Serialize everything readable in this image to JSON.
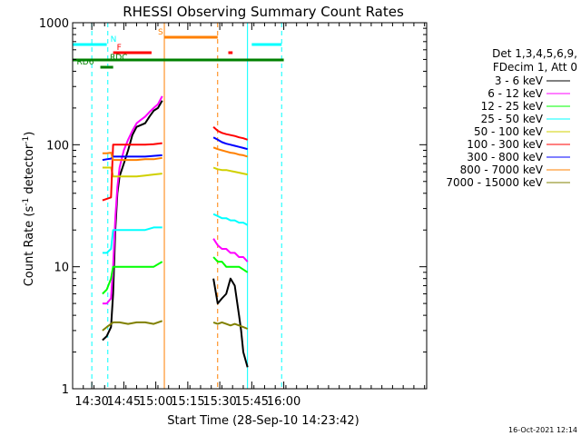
{
  "chart_data": {
    "type": "line",
    "title": "RHESSI Observing Summary Count Rates",
    "xlabel": "Start Time (28-Sep-10 14:23:42)",
    "ylabel_main": "Count Rate (s",
    "ylabel_sup1": "-1",
    "ylabel_mid": " detector",
    "ylabel_sup2": "-1",
    "ylabel_end": ")",
    "yscale": "log",
    "ylim": [
      1,
      1000
    ],
    "xlim_min": [
      14.0,
      180.0
    ],
    "x_ticks": [
      {
        "min": 23,
        "label": "14:30"
      },
      {
        "min": 38,
        "label": "14:45"
      },
      {
        "min": 53,
        "label": "15:00"
      },
      {
        "min": 68,
        "label": "15:15"
      },
      {
        "min": 83,
        "label": "15:30"
      },
      {
        "min": 98,
        "label": "15:45"
      },
      {
        "min": 113,
        "label": "16:00"
      }
    ],
    "y_ticks": [
      {
        "value": 1,
        "label": "1"
      },
      {
        "value": 10,
        "label": "10"
      },
      {
        "value": 100,
        "label": "100"
      },
      {
        "value": 1000,
        "label": "1000"
      }
    ],
    "legend": {
      "header1": "Det 1,3,4,5,6,9,",
      "header2": "FDecim 1, Att 0",
      "position": "right"
    },
    "series": [
      {
        "name": "3 - 6 keV",
        "color": "#000000",
        "seg1": [
          [
            28,
            2.5
          ],
          [
            30,
            2.7
          ],
          [
            32,
            3.2
          ],
          [
            33,
            6
          ],
          [
            34,
            20
          ],
          [
            35,
            40
          ],
          [
            36,
            55
          ],
          [
            38,
            70
          ],
          [
            40,
            90
          ],
          [
            42,
            120
          ],
          [
            44,
            140
          ],
          [
            46,
            145
          ],
          [
            48,
            150
          ],
          [
            50,
            170
          ],
          [
            52,
            190
          ],
          [
            54,
            200
          ],
          [
            56,
            230
          ]
        ],
        "seg2": [
          [
            80,
            8
          ],
          [
            82,
            5
          ],
          [
            84,
            5.5
          ],
          [
            86,
            6
          ],
          [
            88,
            8
          ],
          [
            90,
            7
          ],
          [
            92,
            4
          ],
          [
            93,
            3
          ],
          [
            94,
            2
          ],
          [
            96,
            1.5
          ]
        ]
      },
      {
        "name": "6 - 12 keV",
        "color": "#ff00ff",
        "seg1": [
          [
            28,
            5
          ],
          [
            30,
            5
          ],
          [
            32,
            5.5
          ],
          [
            33,
            10
          ],
          [
            34,
            25
          ],
          [
            35,
            45
          ],
          [
            36,
            65
          ],
          [
            38,
            90
          ],
          [
            40,
            110
          ],
          [
            42,
            130
          ],
          [
            44,
            150
          ],
          [
            46,
            160
          ],
          [
            48,
            170
          ],
          [
            50,
            185
          ],
          [
            52,
            200
          ],
          [
            54,
            215
          ],
          [
            56,
            250
          ]
        ],
        "seg2": [
          [
            80,
            17
          ],
          [
            82,
            15
          ],
          [
            84,
            14
          ],
          [
            86,
            14
          ],
          [
            88,
            13
          ],
          [
            90,
            13
          ],
          [
            92,
            12
          ],
          [
            94,
            12
          ],
          [
            96,
            11
          ]
        ]
      },
      {
        "name": "12 - 25 keV",
        "color": "#00ff00",
        "seg1": [
          [
            28,
            6
          ],
          [
            30,
            6.5
          ],
          [
            32,
            8
          ],
          [
            33,
            10
          ],
          [
            36,
            10
          ],
          [
            40,
            10
          ],
          [
            44,
            10
          ],
          [
            48,
            10
          ],
          [
            52,
            10
          ],
          [
            56,
            11
          ]
        ],
        "seg2": [
          [
            80,
            12
          ],
          [
            82,
            11
          ],
          [
            84,
            11
          ],
          [
            86,
            10
          ],
          [
            88,
            10
          ],
          [
            90,
            10
          ],
          [
            92,
            10
          ],
          [
            94,
            9.5
          ],
          [
            96,
            9
          ]
        ]
      },
      {
        "name": "25 - 50 keV",
        "color": "#00ffff",
        "seg1": [
          [
            28,
            13
          ],
          [
            30,
            13
          ],
          [
            32,
            14
          ],
          [
            33,
            20
          ],
          [
            36,
            20
          ],
          [
            40,
            20
          ],
          [
            44,
            20
          ],
          [
            48,
            20
          ],
          [
            52,
            21
          ],
          [
            56,
            21
          ]
        ],
        "seg2": [
          [
            80,
            27
          ],
          [
            82,
            26
          ],
          [
            84,
            25
          ],
          [
            86,
            25
          ],
          [
            88,
            24
          ],
          [
            90,
            24
          ],
          [
            92,
            23
          ],
          [
            94,
            23
          ],
          [
            96,
            22
          ]
        ]
      },
      {
        "name": "50 - 100 keV",
        "color": "#d0d000",
        "seg1": [
          [
            28,
            65
          ],
          [
            30,
            65
          ],
          [
            32,
            65
          ],
          [
            33,
            55
          ],
          [
            36,
            55
          ],
          [
            40,
            55
          ],
          [
            44,
            55
          ],
          [
            48,
            56
          ],
          [
            52,
            57
          ],
          [
            56,
            58
          ]
        ],
        "seg2": [
          [
            80,
            65
          ],
          [
            82,
            63
          ],
          [
            84,
            62
          ],
          [
            86,
            62
          ],
          [
            88,
            61
          ],
          [
            90,
            60
          ],
          [
            92,
            59
          ],
          [
            94,
            58
          ],
          [
            96,
            57
          ]
        ]
      },
      {
        "name": "100 - 300 keV",
        "color": "#ff0000",
        "seg1": [
          [
            28,
            35
          ],
          [
            30,
            36
          ],
          [
            32,
            37
          ],
          [
            33,
            100
          ],
          [
            36,
            100
          ],
          [
            40,
            100
          ],
          [
            44,
            100
          ],
          [
            48,
            100
          ],
          [
            52,
            101
          ],
          [
            56,
            103
          ]
        ],
        "seg2": [
          [
            80,
            140
          ],
          [
            82,
            130
          ],
          [
            84,
            125
          ],
          [
            86,
            122
          ],
          [
            88,
            120
          ],
          [
            90,
            118
          ],
          [
            92,
            115
          ],
          [
            94,
            113
          ],
          [
            96,
            110
          ]
        ]
      },
      {
        "name": "300 - 800 keV",
        "color": "#0000ff",
        "seg1": [
          [
            28,
            75
          ],
          [
            30,
            76
          ],
          [
            32,
            77
          ],
          [
            33,
            80
          ],
          [
            36,
            80
          ],
          [
            40,
            80
          ],
          [
            44,
            80
          ],
          [
            48,
            80
          ],
          [
            52,
            81
          ],
          [
            56,
            82
          ]
        ],
        "seg2": [
          [
            80,
            115
          ],
          [
            82,
            110
          ],
          [
            84,
            105
          ],
          [
            86,
            102
          ],
          [
            88,
            100
          ],
          [
            90,
            98
          ],
          [
            92,
            96
          ],
          [
            94,
            94
          ],
          [
            96,
            92
          ]
        ]
      },
      {
        "name": "800 - 7000 keV",
        "color": "#ff8000",
        "seg1": [
          [
            28,
            85
          ],
          [
            30,
            85
          ],
          [
            32,
            86
          ],
          [
            33,
            75
          ],
          [
            36,
            75
          ],
          [
            40,
            75
          ],
          [
            44,
            75
          ],
          [
            48,
            76
          ],
          [
            52,
            76
          ],
          [
            56,
            78
          ]
        ],
        "seg2": [
          [
            80,
            95
          ],
          [
            82,
            92
          ],
          [
            84,
            90
          ],
          [
            86,
            88
          ],
          [
            88,
            86
          ],
          [
            90,
            85
          ],
          [
            92,
            83
          ],
          [
            94,
            82
          ],
          [
            96,
            80
          ]
        ]
      },
      {
        "name": "7000 - 15000 keV",
        "color": "#808000",
        "seg1": [
          [
            28,
            3
          ],
          [
            30,
            3.2
          ],
          [
            32,
            3.4
          ],
          [
            33,
            3.5
          ],
          [
            36,
            3.5
          ],
          [
            40,
            3.4
          ],
          [
            44,
            3.5
          ],
          [
            48,
            3.5
          ],
          [
            52,
            3.4
          ],
          [
            56,
            3.6
          ]
        ],
        "seg2": [
          [
            80,
            3.5
          ],
          [
            82,
            3.4
          ],
          [
            84,
            3.5
          ],
          [
            86,
            3.4
          ],
          [
            88,
            3.3
          ],
          [
            90,
            3.4
          ],
          [
            92,
            3.3
          ],
          [
            94,
            3.2
          ],
          [
            96,
            3.1
          ]
        ]
      }
    ],
    "flag_bars": [
      {
        "label": "N",
        "color": "#00ffff",
        "x0": 14,
        "x1": 30,
        "y": 49
      },
      {
        "label": "",
        "color": "#00ffff",
        "x0": 98,
        "x1": 112,
        "y": 49
      },
      {
        "label": "F",
        "color": "#ff0000",
        "x0": 33,
        "x1": 51,
        "y": 58
      },
      {
        "label": "",
        "color": "#ff0000",
        "x0": 87,
        "x1": 89,
        "y": 58
      },
      {
        "label": "S",
        "color": "#ff8000",
        "x0": 57,
        "x1": 82,
        "y": 41
      },
      {
        "label": "RDC",
        "color": "#008000",
        "x0": 14,
        "x1": 113,
        "y": 66
      },
      {
        "label": "RD6",
        "color": "#008000",
        "x0": 27,
        "x1": 33,
        "y": 74
      }
    ],
    "vlines": [
      {
        "min": 23,
        "color": "#00ffff",
        "dash": true
      },
      {
        "min": 30.5,
        "color": "#00ffff",
        "dash": true
      },
      {
        "min": 57,
        "color": "#ff8000",
        "dash": false
      },
      {
        "min": 82,
        "color": "#ff8000",
        "dash": true
      },
      {
        "min": 96,
        "color": "#00ffff",
        "dash": false
      },
      {
        "min": 112,
        "color": "#00ffff",
        "dash": true
      }
    ]
  },
  "footer": {
    "stamp": "16-Oct-2021 12:14"
  }
}
